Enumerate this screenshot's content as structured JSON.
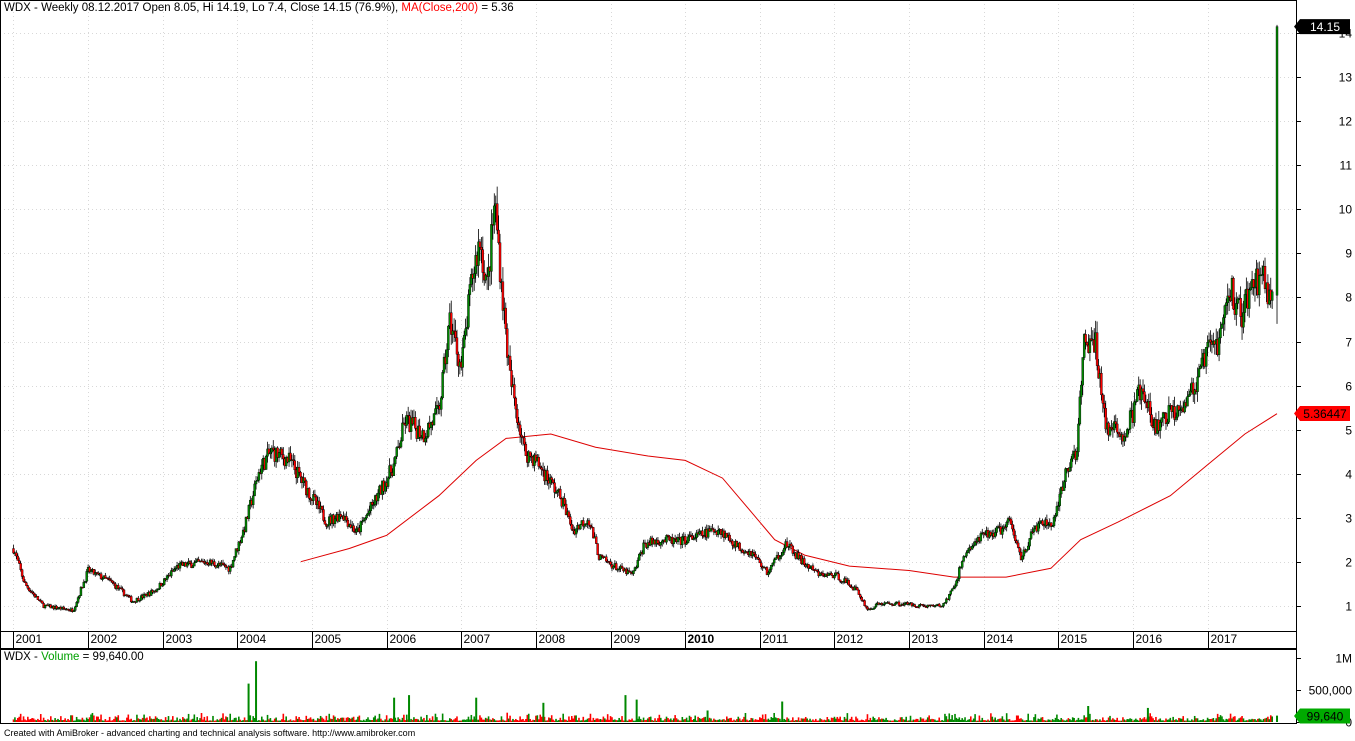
{
  "price_header": {
    "symbol": "WDX",
    "info": " - Weekly 08.12.2017 Open 8.05, Hi 14.19, Lo 7.4, Close 14.15 (76.9%)",
    "ma_label": "MA(Close,200)",
    "ma_value": " = 5.36"
  },
  "volume_header": {
    "symbol": "WDX",
    "sep": " - ",
    "label": "Volume",
    "value": " = 99,640.00"
  },
  "footer": "Created with AmiBroker - advanced charting and technical analysis software. http://www.amibroker.com",
  "colors": {
    "up": "#008800",
    "down": "#ff0000",
    "ma": "#dd0000",
    "last_price_bg": "#000000",
    "ma_badge_bg": "#ff0000",
    "volume_badge_bg": "#00aa00",
    "grid": "#d8d8d8"
  },
  "chart_data": {
    "type": "candlestick",
    "timeframe": "Weekly",
    "symbol": "WDX",
    "years": [
      "2001",
      "2002",
      "2003",
      "2004",
      "2005",
      "2006",
      "2007",
      "2008",
      "2009",
      "2010",
      "2011",
      "2012",
      "2013",
      "2014",
      "2015",
      "2016",
      "2017"
    ],
    "price_axis": {
      "ticks": [
        "1",
        "2",
        "3",
        "4",
        "5",
        "6",
        "7",
        "8",
        "9",
        "10",
        "11",
        "12",
        "13",
        "14"
      ],
      "range": [
        0.45,
        14.3
      ]
    },
    "volume_axis": {
      "ticks": [
        "1M",
        "500,000",
        "0"
      ],
      "range": [
        0,
        1000000
      ]
    },
    "last_close_label": "14.15",
    "ma_label_value": "5.36447",
    "last_volume_label": "99,640",
    "grid": true,
    "close_keypoints": [
      [
        "2001.0",
        2.3
      ],
      [
        "2001.15",
        1.5
      ],
      [
        "2001.4",
        1.0
      ],
      [
        "2001.8",
        0.9
      ],
      [
        "2002.0",
        1.8
      ],
      [
        "2002.3",
        1.55
      ],
      [
        "2002.6",
        1.1
      ],
      [
        "2002.9",
        1.35
      ],
      [
        "2003.2",
        1.9
      ],
      [
        "2003.6",
        2.0
      ],
      [
        "2003.9",
        1.85
      ],
      [
        "2004.1",
        2.8
      ],
      [
        "2004.3",
        4.1
      ],
      [
        "2004.45",
        4.5
      ],
      [
        "2004.7",
        4.3
      ],
      [
        "2004.95",
        3.6
      ],
      [
        "2005.2",
        2.9
      ],
      [
        "2005.4",
        3.1
      ],
      [
        "2005.6",
        2.65
      ],
      [
        "2005.85",
        3.4
      ],
      [
        "2006.1",
        4.2
      ],
      [
        "2006.25",
        5.2
      ],
      [
        "2006.5",
        4.9
      ],
      [
        "2006.7",
        5.4
      ],
      [
        "2006.85",
        7.5
      ],
      [
        "2007.0",
        6.4
      ],
      [
        "2007.15",
        8.5
      ],
      [
        "2007.25",
        9.3
      ],
      [
        "2007.35",
        8.2
      ],
      [
        "2007.45",
        10.2
      ],
      [
        "2007.55",
        8.1
      ],
      [
        "2007.65",
        6.2
      ],
      [
        "2007.85",
        4.5
      ],
      [
        "2008.0",
        4.3
      ],
      [
        "2008.2",
        3.8
      ],
      [
        "2008.35",
        3.4
      ],
      [
        "2008.5",
        2.7
      ],
      [
        "2008.7",
        3.0
      ],
      [
        "2008.85",
        2.1
      ],
      [
        "2009.1",
        1.85
      ],
      [
        "2009.3",
        1.7
      ],
      [
        "2009.45",
        2.4
      ],
      [
        "2009.7",
        2.5
      ],
      [
        "2009.9",
        2.45
      ],
      [
        "2010.2",
        2.6
      ],
      [
        "2010.45",
        2.75
      ],
      [
        "2010.7",
        2.35
      ],
      [
        "2010.9",
        2.2
      ],
      [
        "2011.1",
        1.75
      ],
      [
        "2011.35",
        2.4
      ],
      [
        "2011.6",
        1.95
      ],
      [
        "2011.8",
        1.7
      ],
      [
        "2012.0",
        1.7
      ],
      [
        "2012.15",
        1.55
      ],
      [
        "2012.3",
        1.35
      ],
      [
        "2012.45",
        0.9
      ],
      [
        "2012.6",
        1.05
      ],
      [
        "2012.9",
        1.05
      ],
      [
        "2013.2",
        1.0
      ],
      [
        "2013.45",
        1.0
      ],
      [
        "2013.6",
        1.4
      ],
      [
        "2013.75",
        2.2
      ],
      [
        "2014.0",
        2.6
      ],
      [
        "2014.2",
        2.7
      ],
      [
        "2014.35",
        2.9
      ],
      [
        "2014.5",
        2.1
      ],
      [
        "2014.7",
        2.8
      ],
      [
        "2014.95",
        2.9
      ],
      [
        "2015.1",
        4.0
      ],
      [
        "2015.25",
        4.6
      ],
      [
        "2015.35",
        7.0
      ],
      [
        "2015.5",
        6.9
      ],
      [
        "2015.65",
        5.0
      ],
      [
        "2015.9",
        4.9
      ],
      [
        "2016.1",
        5.9
      ],
      [
        "2016.3",
        5.0
      ],
      [
        "2016.45",
        5.3
      ],
      [
        "2016.65",
        5.6
      ],
      [
        "2016.85",
        6.0
      ],
      [
        "2017.0",
        6.8
      ],
      [
        "2017.15",
        7.0
      ],
      [
        "2017.3",
        8.2
      ],
      [
        "2017.45",
        7.6
      ],
      [
        "2017.6",
        8.3
      ],
      [
        "2017.75",
        8.5
      ],
      [
        "2017.88",
        7.8
      ],
      [
        "2017.93",
        14.15
      ]
    ],
    "ma_keypoints": [
      [
        "2004.85",
        2.0
      ],
      [
        "2005.5",
        2.3
      ],
      [
        "2006.0",
        2.6
      ],
      [
        "2006.7",
        3.5
      ],
      [
        "2007.2",
        4.3
      ],
      [
        "2007.6",
        4.8
      ],
      [
        "2008.2",
        4.9
      ],
      [
        "2008.8",
        4.6
      ],
      [
        "2009.5",
        4.4
      ],
      [
        "2010.0",
        4.3
      ],
      [
        "2010.5",
        3.9
      ],
      [
        "2010.9",
        3.1
      ],
      [
        "2011.2",
        2.5
      ],
      [
        "2011.6",
        2.15
      ],
      [
        "2012.2",
        1.9
      ],
      [
        "2013.0",
        1.8
      ],
      [
        "2013.6",
        1.65
      ],
      [
        "2014.3",
        1.65
      ],
      [
        "2014.9",
        1.85
      ],
      [
        "2015.3",
        2.5
      ],
      [
        "2015.8",
        2.9
      ],
      [
        "2016.5",
        3.5
      ],
      [
        "2017.0",
        4.2
      ],
      [
        "2017.5",
        4.9
      ],
      [
        "2017.93",
        5.36
      ]
    ],
    "volume_spikes": [
      [
        "2004.25",
        950000
      ],
      [
        "2004.15",
        600000
      ],
      [
        "2006.1",
        380000
      ],
      [
        "2006.3",
        420000
      ],
      [
        "2007.2",
        380000
      ],
      [
        "2008.1",
        300000
      ],
      [
        "2009.2",
        420000
      ],
      [
        "2009.35",
        350000
      ],
      [
        "2010.3",
        180000
      ],
      [
        "2011.3",
        320000
      ],
      [
        "2015.4",
        250000
      ],
      [
        "2016.2",
        220000
      ],
      [
        "2017.93",
        99640
      ]
    ]
  }
}
